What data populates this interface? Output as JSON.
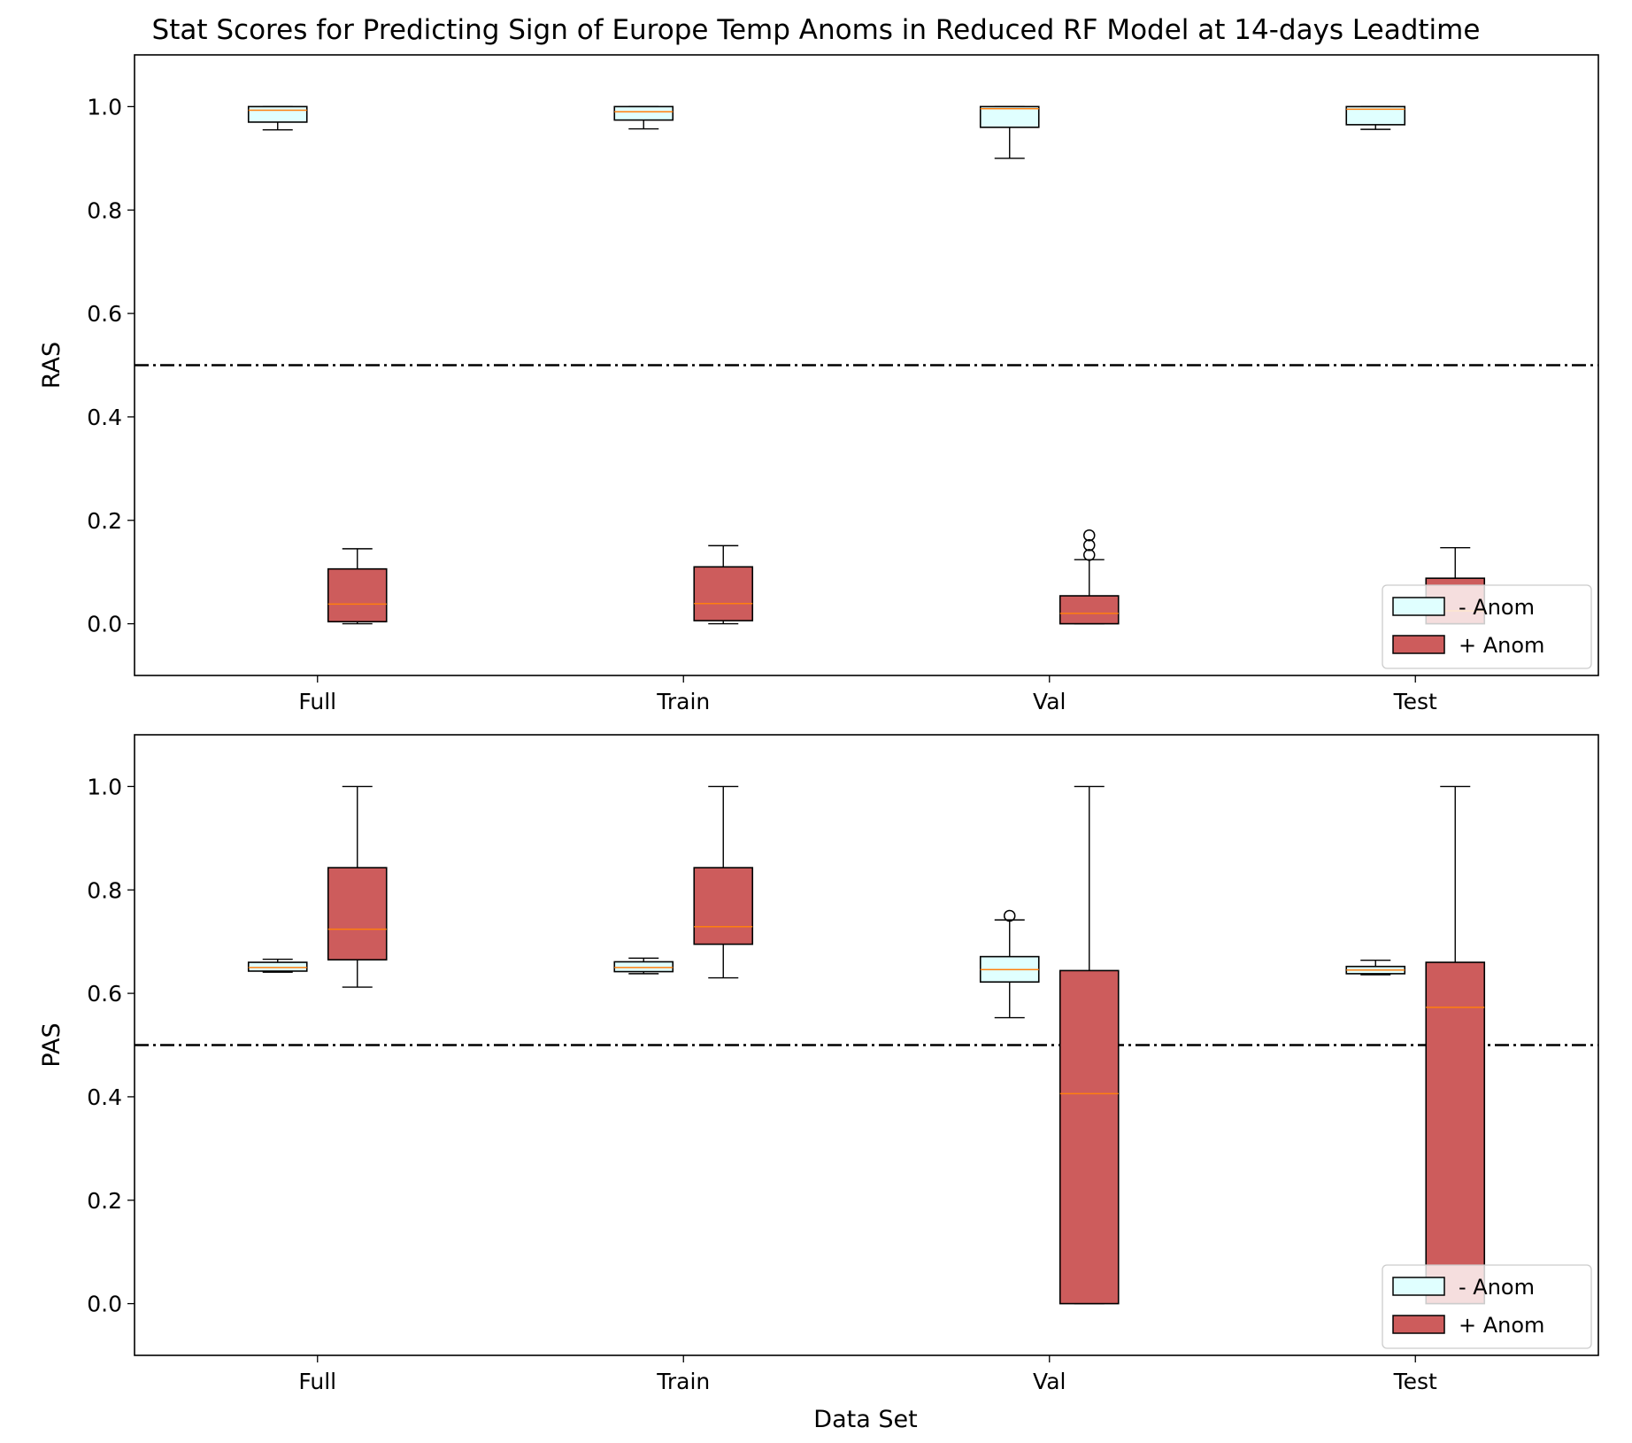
{
  "chart_data": {
    "type": "box",
    "title": "Stat Scores for Predicting Sign of Europe Temp Anoms in Reduced RF Model at 14-days Leadtime",
    "xlabel": "Data Set",
    "categories": [
      "Full",
      "Train",
      "Val",
      "Test"
    ],
    "legend": {
      "location": "lower-right",
      "entries": [
        {
          "name": "- Anom",
          "color": "#e0ffff"
        },
        {
          "name": "+ Anom",
          "color": "#cd5c5c"
        }
      ]
    },
    "colors": {
      "median": "#ff7f0e",
      "reference_line": "#000000",
      "box_edge": "#000000"
    },
    "panels": [
      {
        "ylabel": "RAS",
        "ylim": [
          -0.1,
          1.1
        ],
        "yticks": [
          "0.0",
          "0.2",
          "0.4",
          "0.6",
          "0.8",
          "1.0"
        ],
        "reference_line": 0.5,
        "series": [
          {
            "name": "- Anom",
            "boxes": [
              {
                "whislo": 0.955,
                "q1": 0.97,
                "med": 0.993,
                "q3": 1.0,
                "whishi": 1.0,
                "fliers": []
              },
              {
                "whislo": 0.957,
                "q1": 0.974,
                "med": 0.99,
                "q3": 1.0,
                "whishi": 1.0,
                "fliers": []
              },
              {
                "whislo": 0.9,
                "q1": 0.96,
                "med": 0.996,
                "q3": 1.0,
                "whishi": 1.0,
                "fliers": []
              },
              {
                "whislo": 0.956,
                "q1": 0.965,
                "med": 0.995,
                "q3": 1.0,
                "whishi": 1.0,
                "fliers": []
              }
            ]
          },
          {
            "name": "+ Anom",
            "boxes": [
              {
                "whislo": 0.0,
                "q1": 0.004,
                "med": 0.038,
                "q3": 0.106,
                "whishi": 0.145,
                "fliers": []
              },
              {
                "whislo": 0.0,
                "q1": 0.006,
                "med": 0.039,
                "q3": 0.11,
                "whishi": 0.151,
                "fliers": []
              },
              {
                "whislo": 0.0,
                "q1": 0.0,
                "med": 0.02,
                "q3": 0.054,
                "whishi": 0.124,
                "fliers": [
                  0.133,
                  0.152,
                  0.171
                ]
              },
              {
                "whislo": 0.0,
                "q1": 0.0,
                "med": 0.025,
                "q3": 0.088,
                "whishi": 0.147,
                "fliers": []
              }
            ]
          }
        ]
      },
      {
        "ylabel": "PAS",
        "ylim": [
          -0.1,
          1.1
        ],
        "yticks": [
          "0.0",
          "0.2",
          "0.4",
          "0.6",
          "0.8",
          "1.0"
        ],
        "reference_line": 0.5,
        "series": [
          {
            "name": "- Anom",
            "boxes": [
              {
                "whislo": 0.641,
                "q1": 0.643,
                "med": 0.65,
                "q3": 0.66,
                "whishi": 0.666,
                "fliers": []
              },
              {
                "whislo": 0.638,
                "q1": 0.642,
                "med": 0.65,
                "q3": 0.661,
                "whishi": 0.668,
                "fliers": []
              },
              {
                "whislo": 0.553,
                "q1": 0.622,
                "med": 0.646,
                "q3": 0.671,
                "whishi": 0.742,
                "fliers": [
                  0.75
                ]
              },
              {
                "whislo": 0.636,
                "q1": 0.638,
                "med": 0.645,
                "q3": 0.652,
                "whishi": 0.664,
                "fliers": []
              }
            ]
          },
          {
            "name": "+ Anom",
            "boxes": [
              {
                "whislo": 0.612,
                "q1": 0.665,
                "med": 0.724,
                "q3": 0.843,
                "whishi": 1.0,
                "fliers": []
              },
              {
                "whislo": 0.63,
                "q1": 0.695,
                "med": 0.729,
                "q3": 0.843,
                "whishi": 1.0,
                "fliers": []
              },
              {
                "whislo": 0.0,
                "q1": 0.0,
                "med": 0.406,
                "q3": 0.644,
                "whishi": 1.0,
                "fliers": []
              },
              {
                "whislo": 0.0,
                "q1": 0.0,
                "med": 0.573,
                "q3": 0.66,
                "whishi": 1.0,
                "fliers": []
              }
            ]
          }
        ]
      }
    ]
  }
}
